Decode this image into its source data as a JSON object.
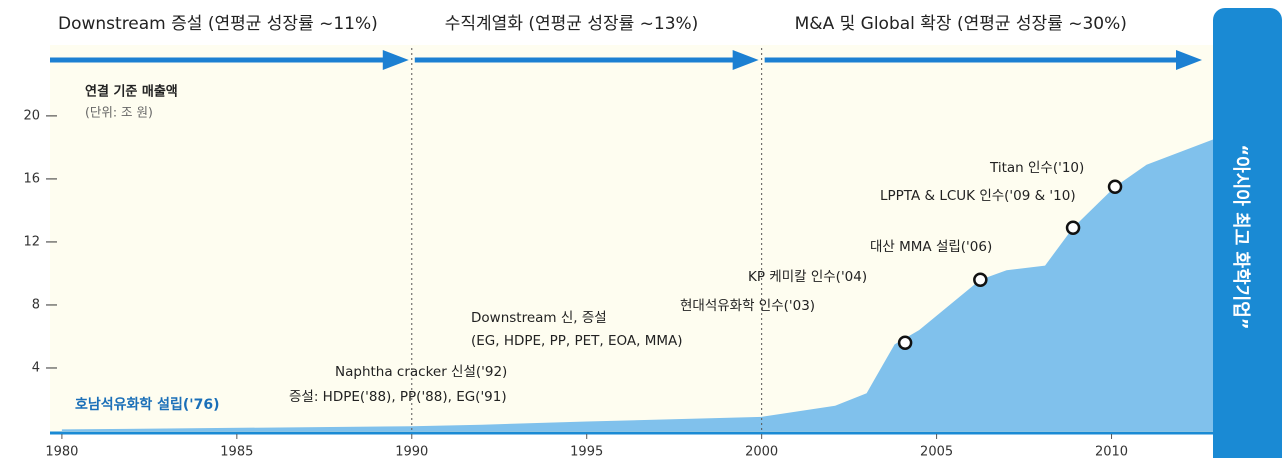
{
  "chart_data": {
    "type": "area",
    "phases": [
      {
        "label": "Downstream 증설 (연평균 성장률 ~11%)"
      },
      {
        "label": "수직계열화 (연평균 성장률 ~13%)"
      },
      {
        "label": "M&A 및 Global 확장 (연평균 성장률 ~30%)"
      }
    ],
    "dividers": [
      1990,
      2000
    ],
    "y_label": "연결 기준 매출액",
    "unit_label": "(단위: 조 원)",
    "side_label": "“아시아 최고 화학기업”",
    "x": [
      1980,
      1990,
      1992,
      1995,
      2000,
      2002.1,
      2003,
      2003.8,
      2004.5,
      2006.25,
      2007,
      2008.1,
      2008.9,
      2010.1,
      2011,
      2012.9
    ],
    "values": [
      0.1,
      0.3,
      0.4,
      0.6,
      0.9,
      1.6,
      2.4,
      5.5,
      6.4,
      9.6,
      10.2,
      10.5,
      12.9,
      15.5,
      16.9,
      18.5
    ],
    "color": "#80c1ec",
    "markers": {
      "x": [
        2004.1,
        2006.25,
        2008.9,
        2010.1
      ],
      "values": [
        5.6,
        9.6,
        12.9,
        15.5
      ]
    },
    "annotations": [
      "호남석유화학 설립('76)",
      "Naphtha cracker 신설('92)",
      "증설: HDPE('88), PP('88), EG('91)",
      "Downstream 신, 증설",
      "(EG, HDPE, PP, PET, EOA, MMA)",
      "현대석유화학 인수('03)",
      "KP 케미칼 인수('04)",
      "대산 MMA 설립('06)",
      "LPPTA & LCUK 인수('09 & '10)",
      "Titan 인수('10)"
    ],
    "xlim": [
      1979.66,
      2012.9
    ],
    "xticks": [
      1980,
      1985,
      1990,
      1995,
      2000,
      2005,
      2010
    ],
    "ylim": [
      0,
      24.5
    ],
    "yticks": [
      4,
      8,
      12,
      16,
      20
    ]
  }
}
